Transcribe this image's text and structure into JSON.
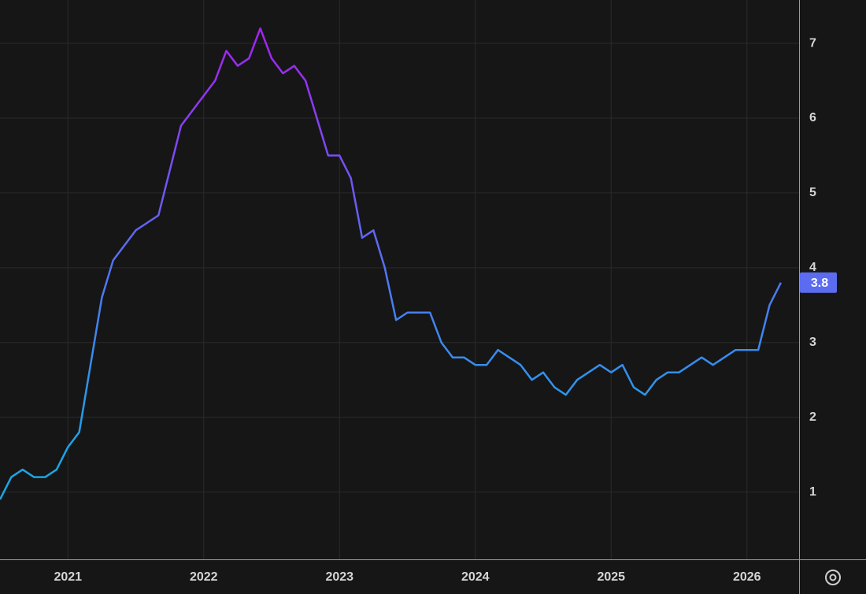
{
  "chart_data": {
    "type": "line",
    "categories": [
      null,
      null,
      null,
      null,
      null,
      null,
      "2021",
      null,
      null,
      null,
      null,
      null,
      null,
      null,
      null,
      null,
      null,
      null,
      "2022",
      null,
      null,
      null,
      null,
      null,
      null,
      null,
      null,
      null,
      null,
      null,
      "2023",
      null,
      null,
      null,
      null,
      null,
      null,
      null,
      null,
      null,
      null,
      null,
      "2024",
      null,
      null,
      null,
      null,
      null,
      null,
      null,
      null,
      null,
      null,
      null,
      "2025",
      null,
      null,
      null,
      null,
      null,
      null,
      null,
      null,
      null,
      null,
      null,
      "2026",
      null,
      null,
      null
    ],
    "values": [
      0.9,
      1.2,
      1.3,
      1.2,
      1.2,
      1.3,
      1.6,
      1.8,
      2.7,
      3.6,
      4.1,
      4.3,
      4.5,
      4.6,
      4.7,
      5.3,
      5.9,
      6.1,
      6.3,
      6.5,
      6.9,
      6.7,
      6.8,
      7.2,
      6.8,
      6.6,
      6.7,
      6.5,
      6.0,
      5.5,
      5.5,
      5.2,
      4.4,
      4.5,
      4.0,
      3.3,
      3.4,
      3.4,
      3.4,
      3.0,
      2.8,
      2.8,
      2.7,
      2.7,
      2.9,
      2.8,
      2.7,
      2.5,
      2.6,
      2.4,
      2.3,
      2.5,
      2.6,
      2.7,
      2.6,
      2.7,
      2.4,
      2.3,
      2.5,
      2.6,
      2.6,
      2.7,
      2.8,
      2.7,
      2.8,
      2.9,
      2.9,
      2.9,
      3.5,
      3.8
    ],
    "gradient_colors": [
      "#1aa6e6",
      "#4f78f2",
      "#a126f2"
    ],
    "badge_color": "#5b6cf0",
    "ylim": [
      0.1,
      7.58
    ],
    "yticks": [
      1,
      2,
      3,
      4,
      5,
      6,
      7
    ],
    "grid": true
  }
}
